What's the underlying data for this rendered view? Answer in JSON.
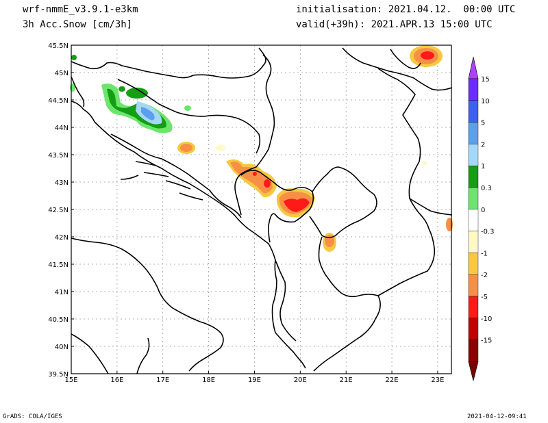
{
  "header": {
    "model": "wrf-nmmE_v3.9.1-e3km",
    "variable": "3h Acc.Snow [cm/3h]",
    "init": "initialisation: 2021.04.12.  00:00 UTC",
    "valid": "valid(+39h): 2021.APR.13 15:00 UTC"
  },
  "footer": {
    "left": "GrADS: COLA/IGES",
    "right": "2021-04-12-09:41"
  },
  "map": {
    "lon_range": [
      15,
      23.3
    ],
    "lat_range": [
      39.5,
      45.5
    ],
    "lon_ticks": [
      "15E",
      "16E",
      "17E",
      "18E",
      "19E",
      "20E",
      "21E",
      "22E",
      "23E"
    ],
    "lat_ticks": [
      "45.5N",
      "45N",
      "44.5N",
      "44N",
      "43.5N",
      "43N",
      "42.5N",
      "42N",
      "41.5N",
      "41N",
      "40.5N",
      "40N",
      "39.5N"
    ]
  },
  "colorbar": {
    "labels": [
      "15",
      "10",
      "5",
      "2",
      "1",
      "0.3",
      "0",
      "-0.3",
      "-1",
      "-2",
      "-5",
      "-10",
      "-15"
    ],
    "colors": [
      "#6a2cff",
      "#3f5ff0",
      "#5aa0ee",
      "#a6d7f7",
      "#149e14",
      "#6ce56c",
      "#ffffff",
      "#fff9c8",
      "#f7c842",
      "#f79046",
      "#ff1a1a",
      "#c00000",
      "#8c0000"
    ],
    "top_arrow": "#b040ff",
    "bottom_arrow": "#7a0000"
  }
}
